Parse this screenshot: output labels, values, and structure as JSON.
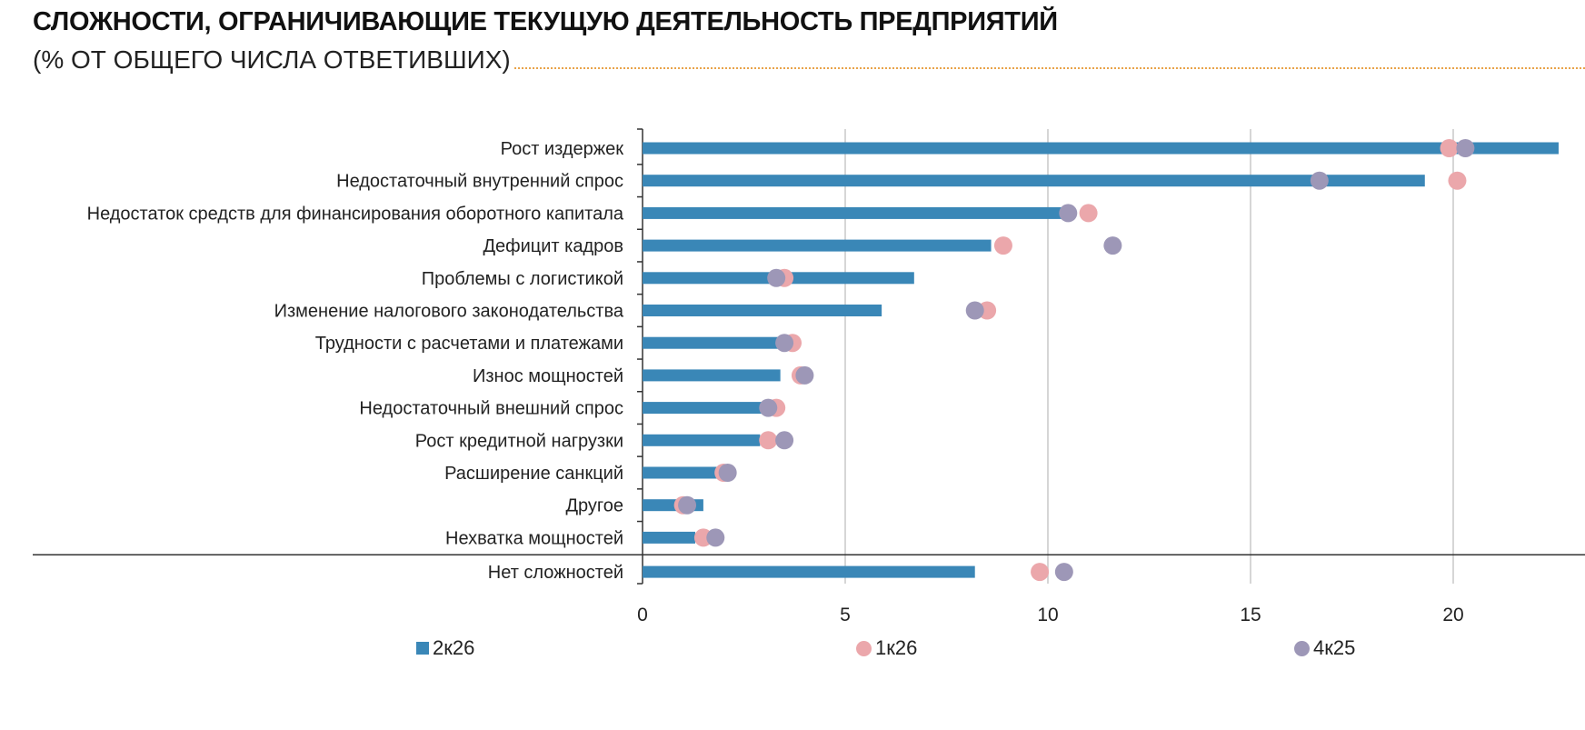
{
  "header": {
    "title": "СЛОЖНОСТИ, ОГРАНИЧИВАЮЩИЕ ТЕКУЩУЮ ДЕЯТЕЛЬНОСТЬ ПРЕДПРИЯТИЙ",
    "subtitle": "(% ОТ ОБЩЕГО ЧИСЛА ОТВЕТИВШИХ)"
  },
  "colors": {
    "bar": "#3a87b7",
    "dot_1k26": "#eba7ab",
    "dot_4k25": "#9d97b7",
    "grid": "#c8c8c8",
    "axis": "#333333",
    "accent_rule": "#e8a34a"
  },
  "chart_data": {
    "type": "bar",
    "orientation": "horizontal",
    "categories": [
      "Рост издержек",
      "Недостаточный внутренний спрос",
      "Недостаток средств для финансирования оборотного капитала",
      "Дефицит кадров",
      "Проблемы с логистикой",
      "Изменение налогового законодательства",
      "Трудности с расчетами и платежами",
      "Износ мощностей",
      "Недостаточный внешний спрос",
      "Рост кредитной нагрузки",
      "Расширение санкций",
      "Другое",
      "Нехватка мощностей",
      "Нет сложностей"
    ],
    "separator_before_category": "Нет сложностей",
    "series": [
      {
        "name": "2к26",
        "kind": "bar",
        "values": [
          22.6,
          19.3,
          10.5,
          8.6,
          6.7,
          5.9,
          3.5,
          3.4,
          3.0,
          2.9,
          1.9,
          1.5,
          1.3,
          8.2
        ]
      },
      {
        "name": "1к26",
        "kind": "dot",
        "values": [
          19.9,
          20.1,
          11.0,
          8.9,
          3.5,
          8.5,
          3.7,
          3.9,
          3.3,
          3.1,
          2.0,
          1.0,
          1.5,
          9.8
        ]
      },
      {
        "name": "4к25",
        "kind": "dot",
        "values": [
          20.3,
          16.7,
          10.5,
          11.6,
          3.3,
          8.2,
          3.5,
          4.0,
          3.1,
          3.5,
          2.1,
          1.1,
          1.8,
          10.4
        ]
      }
    ],
    "xlim": [
      0,
      23
    ],
    "xticks": [
      0,
      5,
      10,
      15,
      20
    ],
    "grid": true,
    "legend_position": "bottom"
  }
}
